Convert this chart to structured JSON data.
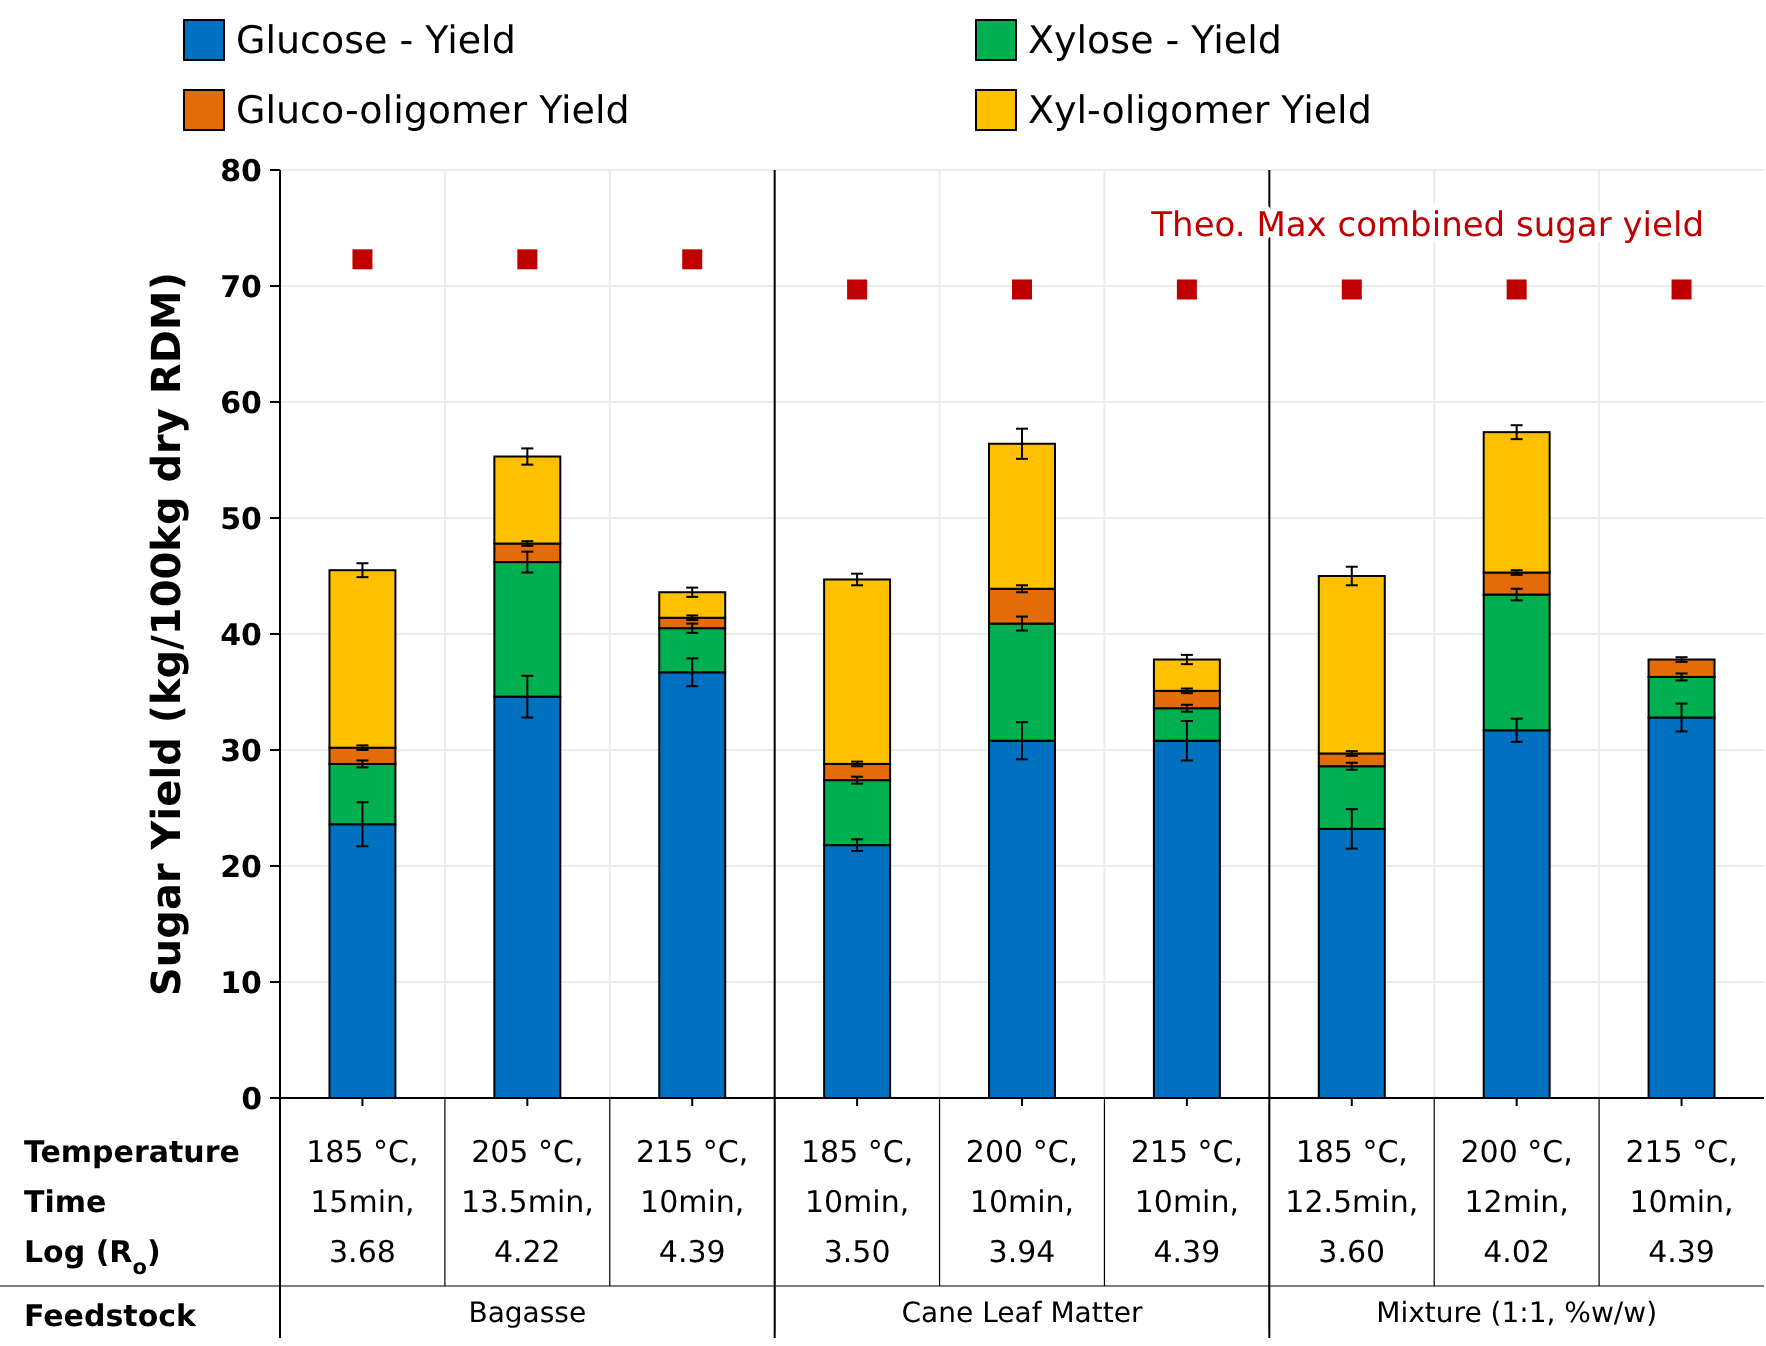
{
  "chart_data": {
    "type": "bar",
    "stacked": true,
    "ylabel": "Sugar Yield (kg/100kg dry RDM)",
    "xlabel": "Temperature\nTime\nLog (R$_{o}$)",
    "categories": [
      "185 °C,\n15min,\n3.68",
      "205 °C,\n13.5min,\n4.22",
      "215 °C,\n10min,\n4.39",
      "185 °C,\n10min,\n3.50",
      "200 °C,\n10min,\n3.94",
      "215 °C,\n10min,\n4.39",
      "185 °C,\n12.5min,\n3.60",
      "200 °C,\n12min,\n4.02",
      "215 °C,\n10min,\n4.39"
    ],
    "series": [
      {
        "name": "Glucose - Yield",
        "color": "#0070c0",
        "values": [
          23.6,
          34.6,
          36.7,
          21.8,
          30.8,
          30.8,
          23.2,
          31.7,
          32.8
        ],
        "errors": [
          1.9,
          1.8,
          1.2,
          0.5,
          1.6,
          1.7,
          1.7,
          1.0,
          1.2
        ]
      },
      {
        "name": "Xylose - Yield",
        "color": "#00b050",
        "values": [
          5.2,
          11.6,
          3.8,
          5.6,
          10.1,
          2.8,
          5.4,
          11.7,
          3.5
        ],
        "errors": [
          0.3,
          0.9,
          0.4,
          0.3,
          0.6,
          0.3,
          0.3,
          0.5,
          0.3
        ]
      },
      {
        "name": "Gluco-oligomer Yield",
        "color": "#e36c09",
        "values": [
          1.4,
          1.6,
          0.9,
          1.4,
          3.0,
          1.5,
          1.1,
          1.9,
          1.5
        ],
        "errors": [
          0.2,
          0.2,
          0.2,
          0.2,
          0.3,
          0.2,
          0.2,
          0.2,
          0.2
        ]
      },
      {
        "name": "Xyl-oligomer Yield",
        "color": "#ffc000",
        "values": [
          15.3,
          7.5,
          2.2,
          15.9,
          12.5,
          2.7,
          15.3,
          12.1,
          null
        ],
        "errors": [
          0.6,
          0.7,
          0.4,
          0.5,
          1.3,
          0.4,
          0.8,
          0.6,
          null
        ]
      },
      {
        "type": "scatter",
        "name": "Theo. Max combined sugar yield",
        "color": "#c00000",
        "marker": "square",
        "values": [
          72.3,
          72.3,
          72.3,
          69.7,
          69.7,
          69.7,
          69.7,
          69.7,
          69.7
        ]
      }
    ],
    "ylim": [
      0,
      80
    ],
    "yticks": [
      0,
      10,
      20,
      30,
      40,
      50,
      60,
      70,
      80
    ],
    "grid": true,
    "legend": "top",
    "annotations": [
      "Feedstock",
      "Bagasse",
      "Cane Leaf Matter",
      "Mixture (1:1, %w/w)"
    ]
  }
}
